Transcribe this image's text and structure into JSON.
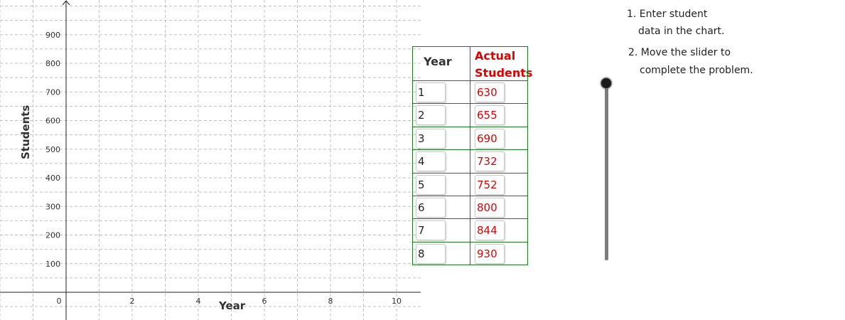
{
  "chart_data": {
    "type": "scatter",
    "xlabel": "Year",
    "ylabel": "Students",
    "xlim": [
      0,
      10.5
    ],
    "ylim": [
      0,
      960
    ],
    "x_tick_labels": [
      "0",
      "2",
      "4",
      "6",
      "8",
      "10"
    ],
    "y_tick_labels": [
      "100",
      "200",
      "300",
      "400",
      "500",
      "600",
      "700",
      "800",
      "900"
    ],
    "grid": true,
    "series": []
  },
  "table": {
    "header_year": "Year",
    "header_actual": "Actual Students",
    "rows": [
      {
        "year": "1",
        "actual": "630"
      },
      {
        "year": "2",
        "actual": "655"
      },
      {
        "year": "3",
        "actual": "690"
      },
      {
        "year": "4",
        "actual": "732"
      },
      {
        "year": "5",
        "actual": "752"
      },
      {
        "year": "6",
        "actual": "800"
      },
      {
        "year": "7",
        "actual": "844"
      },
      {
        "year": "8",
        "actual": "930"
      }
    ]
  },
  "instructions": {
    "step1_line1": "1. Enter student",
    "step1_line2": "data in the chart.",
    "step2_line1": "2. Move the slider to",
    "step2_line2": "complete the problem."
  },
  "slider": {
    "value": 1
  },
  "colors": {
    "table_border": "#1a7f1a",
    "actual_text": "#e00000",
    "grid": "#c0c0c0"
  }
}
